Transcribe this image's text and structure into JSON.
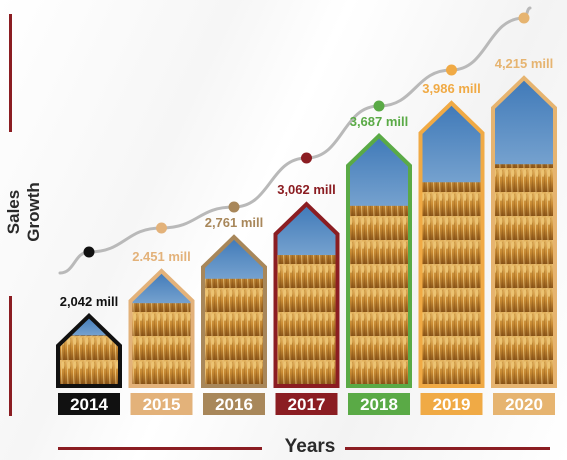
{
  "chart_data": {
    "type": "bar",
    "ylabel": "Sales Growth",
    "xlabel": "Years",
    "categories": [
      "2014",
      "2015",
      "2016",
      "2017",
      "2018",
      "2019",
      "2020"
    ],
    "values": [
      2042,
      2451,
      2761,
      3062,
      3687,
      3986,
      4215
    ],
    "value_labels": [
      "2,042 mill",
      "2.451 mill",
      "2,761 mill",
      "3,062 mill",
      "3,687 mill",
      "3,986 mill",
      "4,215 mill"
    ],
    "colors": [
      "#111111",
      "#e3b27a",
      "#a8875a",
      "#8b1d22",
      "#5aaa46",
      "#f0aa45",
      "#e6b470"
    ],
    "trend_line": true
  }
}
